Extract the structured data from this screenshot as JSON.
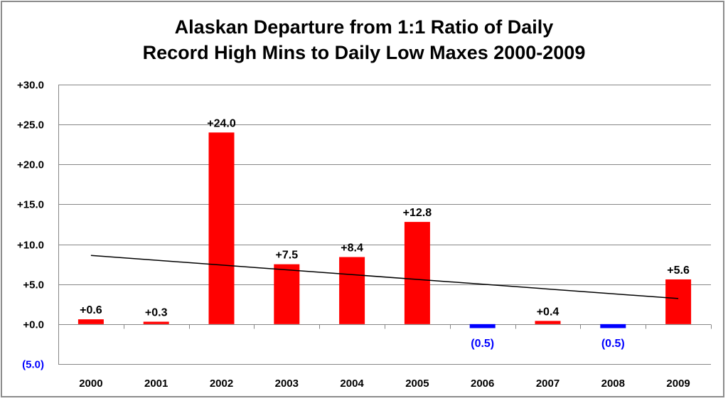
{
  "chart_data": {
    "type": "bar",
    "title_line1": "Alaskan Departure from 1:1 Ratio of Daily",
    "title_line2": "Record High Mins to Daily Low Maxes 2000-2009",
    "categories": [
      "2000",
      "2001",
      "2002",
      "2003",
      "2004",
      "2005",
      "2006",
      "2007",
      "2008",
      "2009"
    ],
    "values": [
      0.6,
      0.3,
      24.0,
      7.5,
      8.4,
      12.8,
      -0.5,
      0.4,
      -0.5,
      5.6
    ],
    "data_labels": [
      "+0.6",
      "+0.3",
      "+24.0",
      "+7.5",
      "+8.4",
      "+12.8",
      "(0.5)",
      "+0.4",
      "(0.5)",
      "+5.6"
    ],
    "y_ticks": [
      {
        "value": 30,
        "label": "+30.0"
      },
      {
        "value": 25,
        "label": "+25.0"
      },
      {
        "value": 20,
        "label": "+20.0"
      },
      {
        "value": 15,
        "label": "+15.0"
      },
      {
        "value": 10,
        "label": "+10.0"
      },
      {
        "value": 5,
        "label": "+5.0"
      },
      {
        "value": 0,
        "label": "+0.0"
      },
      {
        "value": -5,
        "label": "(5.0)"
      }
    ],
    "ylim": [
      -5,
      30
    ],
    "grid": true,
    "positive_color": "#ff0000",
    "negative_color": "#0000ff",
    "trendline": {
      "start_value": 8.6,
      "end_value": 3.2,
      "color": "#000000"
    }
  }
}
